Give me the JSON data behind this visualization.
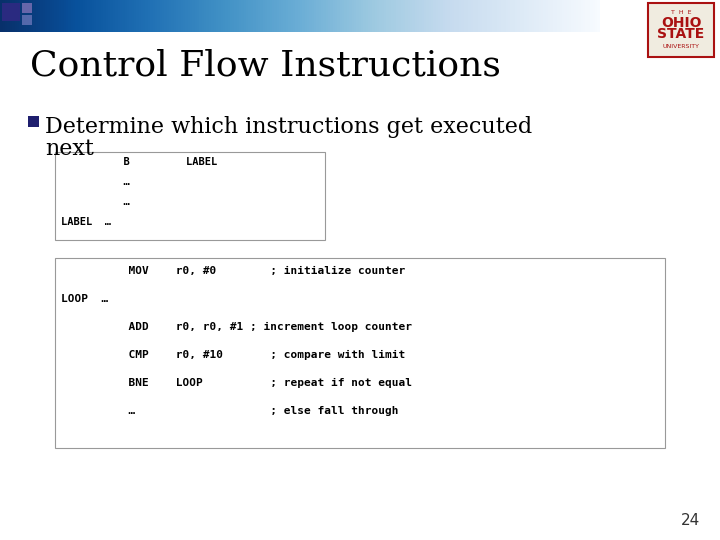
{
  "title": "Control Flow Instructions",
  "bullet_text_line1": "Determine which instructions get executed",
  "bullet_text_line2": "next",
  "box1_lines": [
    "          B         LABEL",
    "          …",
    "          …",
    "LABEL  …"
  ],
  "box2_lines": [
    "          MOV    r0, #0        ; initialize counter",
    "LOOP  …",
    "          ADD    r0, r0, #1 ; increment loop counter",
    "          CMP    r0, #10       ; compare with limit",
    "          BNE    LOOP          ; repeat if not equal",
    "          …                    ; else fall through"
  ],
  "slide_number": "24",
  "bg_color": "#ffffff",
  "title_color": "#000000",
  "bullet_color": "#000000",
  "bullet_square_color": "#1f1f6e",
  "box_bg": "#ffffff",
  "box_border": "#999999",
  "header_bar_left_color": "#1a1a6e",
  "logo_border_color": "#aa1111"
}
